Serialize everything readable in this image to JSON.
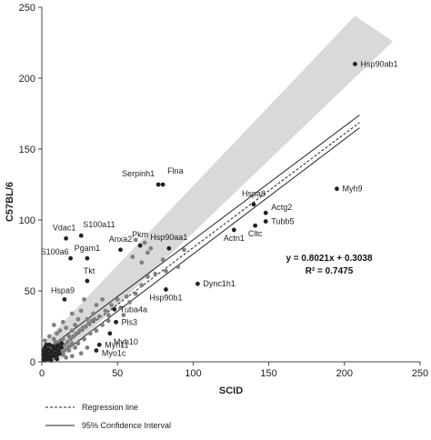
{
  "chart_data": {
    "type": "scatter",
    "xlabel": "SCID",
    "ylabel": "C57BL/6",
    "xlim": [
      0,
      250
    ],
    "ylim": [
      0,
      250
    ],
    "xticks": [
      0,
      50,
      100,
      150,
      200,
      250
    ],
    "yticks": [
      0,
      50,
      100,
      150,
      200,
      250
    ],
    "grid": false,
    "equation_text": "y = 0.8021x + 0.3038",
    "r2_text": "R² = 0.7475",
    "regression": {
      "slope": 0.8021,
      "intercept": 0.3038
    },
    "confidence_band": [
      {
        "x": 0,
        "y": 6
      },
      {
        "x": 210,
        "y": 174
      },
      {
        "x": 210,
        "y": 165
      },
      {
        "x": 6,
        "y": 0
      }
    ],
    "shaded_prediction_band": [
      {
        "x": 0,
        "y": 12
      },
      {
        "x": 207,
        "y": 244
      },
      {
        "x": 232,
        "y": 226
      },
      {
        "x": 11,
        "y": 0
      }
    ],
    "labeled_points": [
      {
        "name": "Hsp90ab1",
        "x": 207,
        "y": 210
      },
      {
        "name": "Flna",
        "x": 80,
        "y": 125
      },
      {
        "name": "Serpinh1",
        "x": 77,
        "y": 125
      },
      {
        "name": "Myh9",
        "x": 195,
        "y": 122
      },
      {
        "name": "Hspa8",
        "x": 140,
        "y": 111
      },
      {
        "name": "Actg2",
        "x": 148,
        "y": 105
      },
      {
        "name": "Tubb5",
        "x": 148,
        "y": 99
      },
      {
        "name": "Cltc",
        "x": 141,
        "y": 96
      },
      {
        "name": "Actn1",
        "x": 127,
        "y": 93
      },
      {
        "name": "Vdac1",
        "x": 16,
        "y": 87
      },
      {
        "name": "S100a11",
        "x": 26,
        "y": 89
      },
      {
        "name": "S100a6",
        "x": 19,
        "y": 73
      },
      {
        "name": "Pgam1",
        "x": 30,
        "y": 73
      },
      {
        "name": "Anxa2",
        "x": 52,
        "y": 79
      },
      {
        "name": "Pkm",
        "x": 65,
        "y": 82
      },
      {
        "name": "Hsp90aa1",
        "x": 84,
        "y": 80
      },
      {
        "name": "Tkt",
        "x": 30,
        "y": 57
      },
      {
        "name": "Hspa9",
        "x": 15,
        "y": 44
      },
      {
        "name": "Dync1h1",
        "x": 103,
        "y": 55
      },
      {
        "name": "Hsp90b1",
        "x": 82,
        "y": 51
      },
      {
        "name": "Tuba4a",
        "x": 48,
        "y": 37
      },
      {
        "name": "Pls3",
        "x": 49,
        "y": 28
      },
      {
        "name": "Myh10",
        "x": 45,
        "y": 20
      },
      {
        "name": "Myh11",
        "x": 38,
        "y": 12
      },
      {
        "name": "Myo1c",
        "x": 36,
        "y": 8
      }
    ],
    "points": [
      {
        "x": 62,
        "y": 86
      },
      {
        "x": 68,
        "y": 84
      },
      {
        "x": 70,
        "y": 77
      },
      {
        "x": 60,
        "y": 74
      },
      {
        "x": 72,
        "y": 80
      },
      {
        "x": 66,
        "y": 70
      },
      {
        "x": 80,
        "y": 72
      },
      {
        "x": 94,
        "y": 79
      },
      {
        "x": 82,
        "y": 64
      },
      {
        "x": 90,
        "y": 67
      },
      {
        "x": 75,
        "y": 62
      },
      {
        "x": 70,
        "y": 60
      },
      {
        "x": 66,
        "y": 54
      },
      {
        "x": 62,
        "y": 48
      },
      {
        "x": 56,
        "y": 46
      },
      {
        "x": 50,
        "y": 44
      },
      {
        "x": 46,
        "y": 40
      },
      {
        "x": 42,
        "y": 36
      },
      {
        "x": 40,
        "y": 44
      },
      {
        "x": 36,
        "y": 40
      },
      {
        "x": 34,
        "y": 34
      },
      {
        "x": 30,
        "y": 30
      },
      {
        "x": 28,
        "y": 44
      },
      {
        "x": 26,
        "y": 36
      },
      {
        "x": 24,
        "y": 30
      },
      {
        "x": 22,
        "y": 26
      },
      {
        "x": 20,
        "y": 22
      },
      {
        "x": 20,
        "y": 34
      },
      {
        "x": 18,
        "y": 18
      },
      {
        "x": 16,
        "y": 24
      },
      {
        "x": 14,
        "y": 16
      },
      {
        "x": 12,
        "y": 14
      },
      {
        "x": 12,
        "y": 22
      },
      {
        "x": 10,
        "y": 12
      },
      {
        "x": 8,
        "y": 10
      },
      {
        "x": 6,
        "y": 8
      },
      {
        "x": 4,
        "y": 6
      },
      {
        "x": 3,
        "y": 4
      },
      {
        "x": 2,
        "y": 3
      },
      {
        "x": 5,
        "y": 12
      },
      {
        "x": 8,
        "y": 16
      },
      {
        "x": 9,
        "y": 6
      },
      {
        "x": 7,
        "y": 4
      },
      {
        "x": 11,
        "y": 8
      },
      {
        "x": 13,
        "y": 10
      },
      {
        "x": 15,
        "y": 12
      },
      {
        "x": 17,
        "y": 14
      },
      {
        "x": 19,
        "y": 16
      },
      {
        "x": 21,
        "y": 18
      },
      {
        "x": 23,
        "y": 20
      },
      {
        "x": 25,
        "y": 22
      },
      {
        "x": 27,
        "y": 24
      },
      {
        "x": 29,
        "y": 25
      },
      {
        "x": 31,
        "y": 27
      },
      {
        "x": 33,
        "y": 29
      },
      {
        "x": 35,
        "y": 30
      },
      {
        "x": 38,
        "y": 32
      },
      {
        "x": 44,
        "y": 33
      },
      {
        "x": 52,
        "y": 38
      },
      {
        "x": 58,
        "y": 42
      },
      {
        "x": 24,
        "y": 13
      },
      {
        "x": 28,
        "y": 16
      },
      {
        "x": 32,
        "y": 20
      },
      {
        "x": 36,
        "y": 22
      },
      {
        "x": 40,
        "y": 26
      },
      {
        "x": 44,
        "y": 29
      },
      {
        "x": 54,
        "y": 33
      },
      {
        "x": 18,
        "y": 8
      },
      {
        "x": 22,
        "y": 10
      },
      {
        "x": 26,
        "y": 6
      },
      {
        "x": 30,
        "y": 10
      },
      {
        "x": 14,
        "y": 5
      },
      {
        "x": 16,
        "y": 3
      },
      {
        "x": 20,
        "y": 4
      },
      {
        "x": 10,
        "y": 2
      },
      {
        "x": 6,
        "y": 1
      },
      {
        "x": 1,
        "y": 8
      },
      {
        "x": 2,
        "y": 10
      },
      {
        "x": 3,
        "y": 12
      },
      {
        "x": 4,
        "y": 9
      },
      {
        "x": 1,
        "y": 5
      },
      {
        "x": 2,
        "y": 6
      },
      {
        "x": 3,
        "y": 7
      },
      {
        "x": 5,
        "y": 5
      },
      {
        "x": 7,
        "y": 7
      },
      {
        "x": 9,
        "y": 9
      },
      {
        "x": 11,
        "y": 11
      },
      {
        "x": 13,
        "y": 13
      },
      {
        "x": 2,
        "y": 1
      },
      {
        "x": 4,
        "y": 2
      },
      {
        "x": 6,
        "y": 3
      },
      {
        "x": 8,
        "y": 4
      },
      {
        "x": 10,
        "y": 5
      },
      {
        "x": 12,
        "y": 6
      },
      {
        "x": 14,
        "y": 7
      },
      {
        "x": 16,
        "y": 9
      },
      {
        "x": 18,
        "y": 11
      },
      {
        "x": 20,
        "y": 13
      },
      {
        "x": 9,
        "y": 14
      },
      {
        "x": 7,
        "y": 11
      },
      {
        "x": 1,
        "y": 2
      },
      {
        "x": 3,
        "y": 2
      },
      {
        "x": 5,
        "y": 3
      },
      {
        "x": 2,
        "y": 15
      },
      {
        "x": 5,
        "y": 18
      },
      {
        "x": 10,
        "y": 20
      },
      {
        "x": 8,
        "y": 26
      },
      {
        "x": 14,
        "y": 28
      }
    ]
  },
  "legend": {
    "items": [
      {
        "label": "Regression line",
        "style": "dashed"
      },
      {
        "label": "95% Confidence Interval",
        "style": "solid"
      }
    ]
  },
  "colors": {
    "band": "#d9d9d9",
    "point": "#808080",
    "point_dark": "#222222",
    "line": "#222222"
  }
}
